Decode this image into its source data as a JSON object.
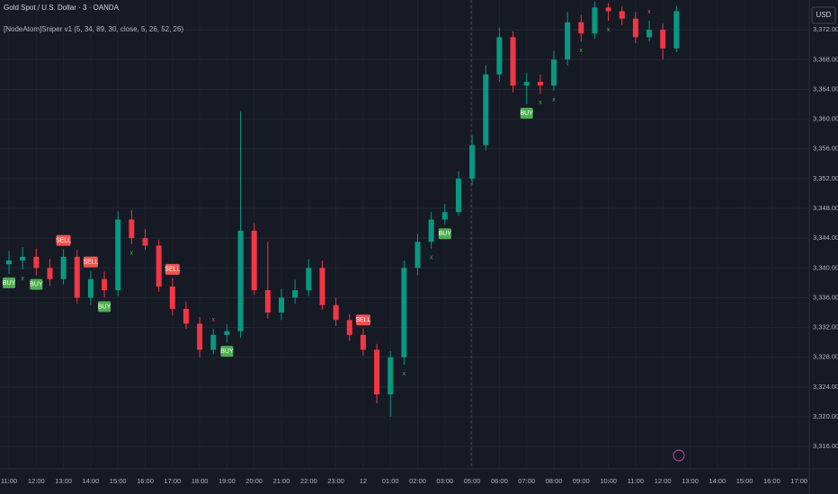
{
  "chart_data": {
    "type": "candlestick",
    "title": "Gold Spot / U.S. Dollar · 3 · OANDA",
    "subtitle": "[NodeAtom]Sniper v1 (5, 34, 89, 30, close, 5, 26, 52, 26)",
    "currency": "USD",
    "up_color": "#089981",
    "down_color": "#f23645",
    "grid": true,
    "xticks": [
      "11:00",
      "12:00",
      "13:00",
      "14:00",
      "15:00",
      "16:00",
      "17:00",
      "18:00",
      "19:00",
      "20:00",
      "21:00",
      "22:00",
      "23:00",
      "12",
      "01:00",
      "02:00",
      "03:00",
      "05:00",
      "06:00",
      "07:00",
      "08:00",
      "09:00",
      "10:00",
      "11:00",
      "12:00",
      "13:00",
      "14:00",
      "15:00",
      "16:00",
      "17:00"
    ],
    "ylim": [
      3313,
      3376
    ],
    "yticks": [
      {
        "value": 3316,
        "label": "3,316.000"
      },
      {
        "value": 3320,
        "label": "3,320.000"
      },
      {
        "value": 3324,
        "label": "3,324.000"
      },
      {
        "value": 3328,
        "label": "3,328.000"
      },
      {
        "value": 3332,
        "label": "3,332.000"
      },
      {
        "value": 3336,
        "label": "3,336.000"
      },
      {
        "value": 3340,
        "label": "3,340.000"
      },
      {
        "value": 3344,
        "label": "3,344.000"
      },
      {
        "value": 3348,
        "label": "3,348.000"
      },
      {
        "value": 3352,
        "label": "3,352.000"
      },
      {
        "value": 3356,
        "label": "3,356.000"
      },
      {
        "value": 3360,
        "label": "3,360.000"
      },
      {
        "value": 3364,
        "label": "3,364.000"
      },
      {
        "value": 3368,
        "label": "3,368.000"
      },
      {
        "value": 3372,
        "label": "3,372.000"
      }
    ],
    "open": [
      3340.5,
      3341,
      3341.5,
      3340,
      3338.5,
      3341.5,
      3336,
      3338.5,
      3337,
      3346.5,
      3344,
      3343,
      3337.5,
      3334.5,
      3332.5,
      3329,
      3331,
      3331.5,
      3345,
      3337,
      3334,
      3336,
      3337,
      3340,
      3335,
      3333,
      3331,
      3329,
      3323,
      3328,
      3340,
      3343.5,
      3346.5,
      3347.5,
      3352,
      3356.5,
      3366,
      3371,
      3364.5,
      3365,
      3364.5,
      3368,
      3373,
      3371.5,
      3375,
      3374.5,
      3373.5,
      3371,
      3372,
      3369.5
    ],
    "high": [
      3342.3,
      3342.8,
      3342.6,
      3341.2,
      3342.5,
      3342.4,
      3339.6,
      3339.5,
      3347.6,
      3347.8,
      3345.2,
      3343.8,
      3338.6,
      3335.5,
      3333.4,
      3331.8,
      3332.4,
      3361,
      3346,
      3343.5,
      3337.2,
      3338.4,
      3341.2,
      3341,
      3336,
      3333.8,
      3331.8,
      3329.8,
      3328.8,
      3341,
      3344.6,
      3347.5,
      3348.6,
      3353,
      3357.8,
      3367.2,
      3372.3,
      3371.8,
      3366.2,
      3366,
      3369.2,
      3374.4,
      3374,
      3375.8,
      3375.6,
      3375.2,
      3374.4,
      3373.2,
      3372.8,
      3375.2
    ],
    "low": [
      3339.2,
      3339.8,
      3339,
      3337.6,
      3337.8,
      3335.2,
      3335,
      3336,
      3336.2,
      3343.2,
      3342.4,
      3336.8,
      3333.6,
      3331.8,
      3328,
      3328.4,
      3330,
      3330.6,
      3336.4,
      3333.2,
      3333,
      3335.2,
      3336.2,
      3334.4,
      3332.2,
      3330.2,
      3328.2,
      3321.8,
      3320,
      3327,
      3339,
      3342.6,
      3345.8,
      3347,
      3351.2,
      3355.8,
      3365,
      3363.6,
      3362,
      3363.4,
      3363.8,
      3367.2,
      3370.4,
      3370.8,
      3373.2,
      3372.6,
      3370.2,
      3370.4,
      3368,
      3369
    ],
    "close": [
      3341,
      3341.5,
      3340,
      3338.5,
      3341.5,
      3336,
      3338.5,
      3337,
      3346.5,
      3344,
      3343,
      3337.5,
      3334.5,
      3332.5,
      3329,
      3331,
      3331.5,
      3345,
      3337,
      3334,
      3336,
      3337,
      3340,
      3335,
      3333,
      3331,
      3329,
      3323,
      3328,
      3340,
      3343.5,
      3346.5,
      3347.5,
      3352,
      3356.5,
      3366,
      3371,
      3364.5,
      3365,
      3364.5,
      3368,
      3373,
      3371.5,
      3375,
      3374.5,
      3373.5,
      3371,
      3372,
      3369.5,
      3374.5
    ],
    "buy_marks": [
      "BUY",
      "x",
      "BUY",
      null,
      null,
      null,
      null,
      "BUY",
      null,
      "x",
      null,
      null,
      null,
      null,
      null,
      null,
      "BUY",
      null,
      null,
      null,
      null,
      null,
      null,
      null,
      null,
      null,
      null,
      null,
      null,
      "x",
      null,
      "x",
      "BUY",
      null,
      null,
      null,
      null,
      null,
      "BUY",
      "x",
      "x",
      null,
      "x",
      null,
      "x",
      null,
      null,
      null,
      null,
      null
    ],
    "sell_marks": [
      null,
      null,
      null,
      null,
      "SELL",
      null,
      "SELL",
      null,
      null,
      null,
      null,
      null,
      "SELL",
      null,
      null,
      "x",
      null,
      null,
      null,
      null,
      null,
      null,
      null,
      null,
      null,
      null,
      "SELL",
      null,
      null,
      null,
      null,
      null,
      null,
      null,
      null,
      null,
      null,
      null,
      null,
      null,
      null,
      null,
      null,
      null,
      null,
      null,
      null,
      "x",
      null,
      null
    ]
  }
}
